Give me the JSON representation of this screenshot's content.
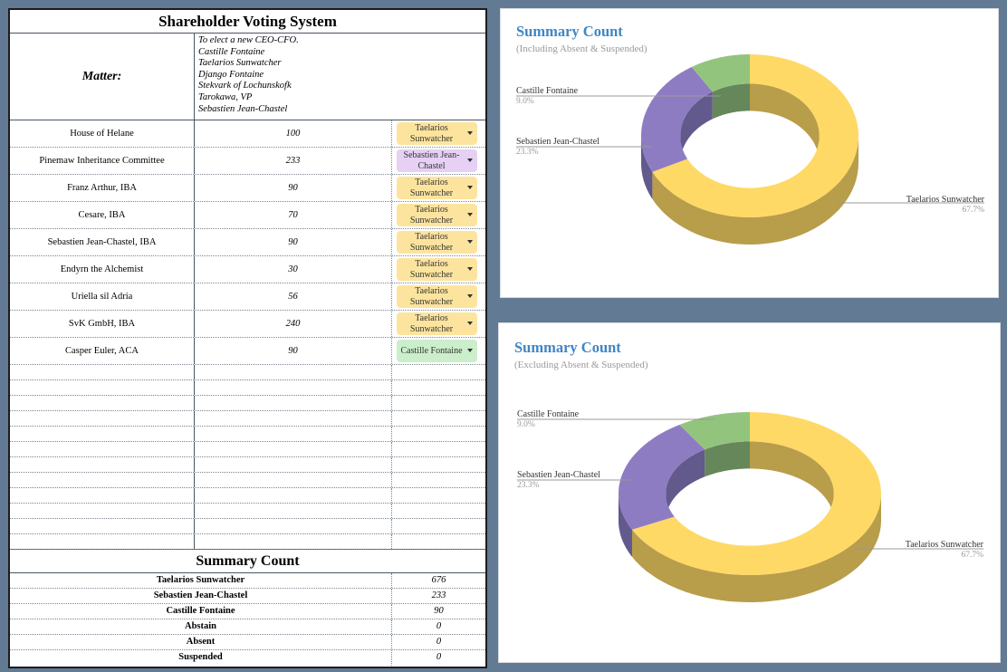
{
  "sheet": {
    "title": "Shareholder Voting System",
    "matter_label": "Matter:",
    "matter_lines": [
      "To elect a new CEO-CFO.",
      "Castille Fontaine",
      "Taelarios Sunwatcher",
      "Django Fontaine",
      "Stekvark of Lochunskofk",
      "Tarokawa, VP",
      "Sebastien Jean-Chastel"
    ],
    "rows": [
      {
        "holder": "House of Helane",
        "shares": "100",
        "vote": "Taelarios Sunwatcher",
        "color": "#fde49e"
      },
      {
        "holder": "Pinemaw Inheritance Committee",
        "shares": "233",
        "vote": "Sebastien Jean-Chastel",
        "color": "#e6d1f5"
      },
      {
        "holder": "Franz Arthur, IBA",
        "shares": "90",
        "vote": "Taelarios Sunwatcher",
        "color": "#fde49e"
      },
      {
        "holder": "Cesare, IBA",
        "shares": "70",
        "vote": "Taelarios Sunwatcher",
        "color": "#fde49e"
      },
      {
        "holder": "Sebastien Jean-Chastel, IBA",
        "shares": "90",
        "vote": "Taelarios Sunwatcher",
        "color": "#fde49e"
      },
      {
        "holder": "Endyrn the Alchemist",
        "shares": "30",
        "vote": "Taelarios Sunwatcher",
        "color": "#fde49e"
      },
      {
        "holder": "Uriella sil Adria",
        "shares": "56",
        "vote": "Taelarios Sunwatcher",
        "color": "#fde49e"
      },
      {
        "holder": "SvK GmbH, IBA",
        "shares": "240",
        "vote": "Taelarios Sunwatcher",
        "color": "#fde49e"
      },
      {
        "holder": "Casper Euler, ACA",
        "shares": "90",
        "vote": "Castille Fontaine",
        "color": "#cbeecb"
      }
    ],
    "empty_rows": 12,
    "summary_title": "Summary Count",
    "summary": [
      {
        "label": "Taelarios Sunwatcher",
        "value": "676"
      },
      {
        "label": "Sebastien Jean-Chastel",
        "value": "233"
      },
      {
        "label": "Castille Fontaine",
        "value": "90"
      },
      {
        "label": "Abstain",
        "value": "0"
      },
      {
        "label": "Absent",
        "value": "0"
      },
      {
        "label": "Suspended",
        "value": "0"
      }
    ]
  },
  "chart1": {
    "title": "Summary Count",
    "subtitle": "(Including Absent & Suspended)"
  },
  "chart2": {
    "title": "Summary Count",
    "subtitle": "(Excluding Absent & Suspended)"
  },
  "chart_data": [
    {
      "type": "pie",
      "title": "Summary Count",
      "subtitle": "(Including Absent & Suspended)",
      "categories": [
        "Taelarios Sunwatcher",
        "Sebastien Jean-Chastel",
        "Castille Fontaine"
      ],
      "values": [
        67.7,
        23.3,
        9.0
      ],
      "value_labels": [
        "67.7%",
        "23.3%",
        "9.0%"
      ],
      "colors": [
        "#ffd966",
        "#8e7cc3",
        "#93c47d"
      ],
      "side_colors": [
        "#b89d4a",
        "#625a8c",
        "#65875a"
      ],
      "style": "3d-donut"
    },
    {
      "type": "pie",
      "title": "Summary Count",
      "subtitle": "(Excluding Absent & Suspended)",
      "categories": [
        "Taelarios Sunwatcher",
        "Sebastien Jean-Chastel",
        "Castille Fontaine"
      ],
      "values": [
        67.7,
        23.3,
        9.0
      ],
      "value_labels": [
        "67.7%",
        "23.3%",
        "9.0%"
      ],
      "colors": [
        "#ffd966",
        "#8e7cc3",
        "#93c47d"
      ],
      "side_colors": [
        "#b89d4a",
        "#625a8c",
        "#65875a"
      ],
      "style": "3d-donut"
    }
  ]
}
